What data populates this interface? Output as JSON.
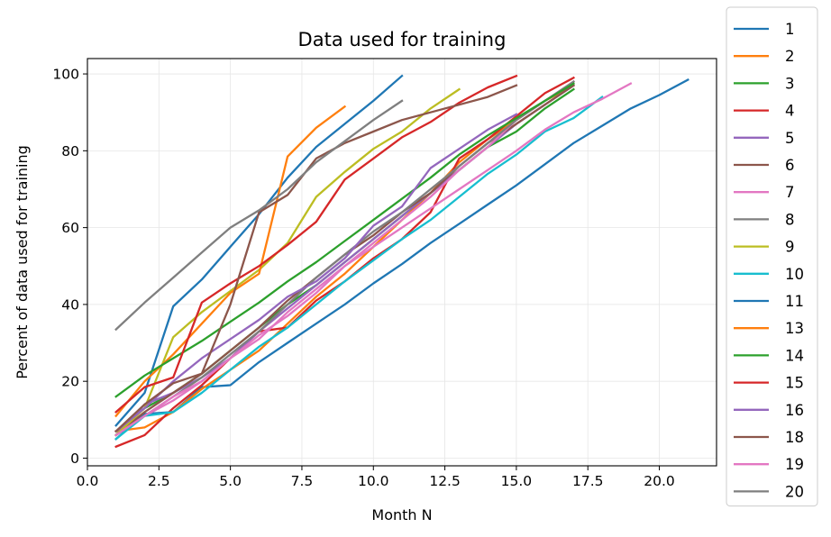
{
  "chart_data": {
    "type": "line",
    "title": "Data used for training",
    "xlabel": "Month N",
    "ylabel": "Percent of data used for training",
    "xlim": [
      0,
      22
    ],
    "ylim": [
      -2,
      104
    ],
    "xticks": [
      0.0,
      2.5,
      5.0,
      7.5,
      10.0,
      12.5,
      15.0,
      17.5,
      20.0
    ],
    "xtick_labels": [
      "0.0",
      "2.5",
      "5.0",
      "7.5",
      "10.0",
      "12.5",
      "15.0",
      "17.5",
      "20.0"
    ],
    "yticks": [
      0,
      20,
      40,
      60,
      80,
      100
    ],
    "ytick_labels": [
      "0",
      "20",
      "40",
      "60",
      "80",
      "100"
    ],
    "grid": true,
    "legend_placement": "outside-right",
    "series": [
      {
        "name": "1",
        "color": "#1f77b4",
        "x": [
          1,
          2,
          3,
          4,
          5,
          6,
          7,
          8,
          9,
          10,
          11,
          12,
          13,
          14,
          15,
          16,
          17,
          18,
          19,
          20,
          21
        ],
        "y": [
          5,
          11.5,
          12,
          18.5,
          19,
          25,
          30,
          35,
          40,
          45.5,
          50.5,
          56,
          61,
          66,
          71,
          76.5,
          82,
          86.5,
          91,
          94.5,
          98.5
        ]
      },
      {
        "name": "2",
        "color": "#ff7f0e",
        "x": [
          1,
          2,
          3,
          4,
          5,
          6,
          7,
          8,
          9,
          10,
          11,
          12,
          13,
          14,
          15,
          16,
          17
        ],
        "y": [
          7,
          8,
          12,
          18,
          23,
          28,
          35,
          42,
          48,
          55,
          62,
          69,
          77,
          83,
          88,
          93,
          97
        ]
      },
      {
        "name": "3",
        "color": "#2ca02c",
        "x": [
          1,
          2,
          3,
          4,
          5,
          6,
          7,
          8,
          9,
          10,
          11,
          12,
          13,
          14,
          15,
          16,
          17
        ],
        "y": [
          7,
          13,
          17,
          22,
          28,
          34,
          40,
          45,
          51,
          57,
          63,
          69,
          75,
          81,
          85,
          91,
          96
        ]
      },
      {
        "name": "4",
        "color": "#d62728",
        "x": [
          1,
          2,
          3,
          4,
          5,
          6,
          7,
          8,
          9,
          10,
          11,
          12,
          13,
          14,
          15,
          16,
          17
        ],
        "y": [
          3,
          6,
          13,
          19,
          26,
          33,
          34,
          41,
          46,
          52,
          57,
          64,
          78,
          83,
          89,
          95,
          99
        ]
      },
      {
        "name": "5",
        "color": "#9467bd",
        "x": [
          1,
          2,
          3,
          4,
          5,
          6,
          7,
          8,
          9,
          10,
          11,
          12,
          13,
          14,
          15,
          16,
          17
        ],
        "y": [
          6,
          14,
          17,
          21,
          26,
          33,
          39,
          45,
          51,
          57,
          63,
          69,
          75,
          81,
          87,
          92,
          97
        ]
      },
      {
        "name": "6",
        "color": "#8c564b",
        "x": [
          1,
          2,
          3,
          4,
          5,
          6,
          7,
          8,
          9,
          10,
          11,
          12,
          13,
          14,
          15,
          16,
          17
        ],
        "y": [
          6,
          12,
          17,
          22,
          28,
          34,
          41,
          47,
          53,
          58,
          64,
          69,
          76,
          82,
          87,
          92,
          97
        ]
      },
      {
        "name": "7",
        "color": "#e377c2",
        "x": [
          1,
          2,
          3,
          4,
          5,
          6,
          7,
          8,
          9,
          10,
          11,
          12,
          13,
          14,
          15,
          16,
          17
        ],
        "y": [
          6,
          11,
          15,
          20,
          26,
          32,
          37,
          43,
          50,
          56,
          62,
          68,
          75,
          81,
          88,
          93,
          98
        ]
      },
      {
        "name": "8",
        "color": "#7f7f7f",
        "x": [
          1,
          2,
          3,
          4,
          5,
          6,
          7,
          8,
          9,
          10,
          11,
          12,
          13,
          14,
          15,
          16,
          17
        ],
        "y": [
          6,
          11,
          16,
          21,
          27,
          33,
          40,
          47,
          53,
          59,
          64,
          70,
          76,
          82,
          88,
          93,
          98
        ]
      },
      {
        "name": "9",
        "color": "#bcbd22",
        "x": [
          1,
          2,
          3,
          4,
          5,
          6,
          7,
          8,
          9,
          10,
          11,
          12,
          13
        ],
        "y": [
          6,
          13,
          31.5,
          38,
          43.5,
          49,
          56,
          68,
          74.5,
          80.5,
          85,
          91,
          96
        ]
      },
      {
        "name": "10",
        "color": "#17becf",
        "x": [
          1,
          2,
          3,
          4,
          5,
          6,
          7,
          8,
          9,
          10,
          11,
          12,
          13,
          14,
          15,
          16,
          17,
          18
        ],
        "y": [
          5,
          11,
          12,
          17,
          23,
          29,
          34,
          40,
          46,
          51.5,
          57,
          62,
          68,
          74,
          79,
          85,
          88.5,
          94
        ]
      },
      {
        "name": "11",
        "color": "#1f77b4",
        "x": [
          1,
          2,
          3,
          4,
          5,
          6,
          7,
          8,
          9,
          10,
          11
        ],
        "y": [
          8.5,
          17,
          39.5,
          46.5,
          55,
          63.5,
          73,
          81,
          87,
          93,
          99.5
        ]
      },
      {
        "name": "13",
        "color": "#ff7f0e",
        "x": [
          1,
          2,
          3,
          4,
          5,
          6,
          7,
          8,
          9
        ],
        "y": [
          11,
          20,
          27,
          35,
          43,
          48,
          78.5,
          86,
          91.5
        ]
      },
      {
        "name": "14",
        "color": "#2ca02c",
        "x": [
          1,
          2,
          3,
          4,
          5,
          6,
          7,
          8,
          9,
          10,
          11,
          12,
          13,
          14,
          15,
          16,
          17
        ],
        "y": [
          16,
          21.5,
          26,
          30.5,
          35.5,
          40.5,
          46,
          51,
          56.5,
          62,
          67.5,
          73,
          79,
          84,
          88.5,
          93,
          97.5
        ]
      },
      {
        "name": "15",
        "color": "#d62728",
        "x": [
          1,
          2,
          3,
          4,
          5,
          6,
          7,
          8,
          9,
          10,
          11,
          12,
          13,
          14,
          15
        ],
        "y": [
          12,
          18.5,
          21,
          40.5,
          45.5,
          50,
          55.5,
          61.5,
          72.5,
          78,
          83.5,
          87.5,
          92.5,
          96.5,
          99.5
        ]
      },
      {
        "name": "16",
        "color": "#9467bd",
        "x": [
          1,
          2,
          3,
          4,
          5,
          6,
          7,
          8,
          9,
          10,
          11,
          12,
          13,
          14,
          15
        ],
        "y": [
          7,
          13,
          20,
          26,
          31,
          36,
          42,
          46,
          52,
          60.5,
          65.5,
          75.5,
          80.5,
          85.5,
          89.5
        ]
      },
      {
        "name": "18",
        "color": "#8c564b",
        "x": [
          1,
          2,
          3,
          4,
          5,
          6,
          7,
          8,
          9,
          10,
          11,
          12,
          13,
          14,
          15
        ],
        "y": [
          7,
          14,
          19.5,
          22,
          40,
          64,
          68.5,
          78,
          82,
          85,
          88,
          90,
          92,
          94,
          97
        ]
      },
      {
        "name": "19",
        "color": "#e377c2",
        "x": [
          1,
          2,
          3,
          4,
          5,
          6,
          7,
          8,
          9,
          10,
          11,
          12,
          13,
          14,
          15,
          16,
          17,
          18,
          19
        ],
        "y": [
          6,
          11,
          16,
          20,
          26,
          31,
          38,
          44,
          50,
          55,
          60,
          65,
          70,
          75,
          80,
          85.5,
          90,
          93.5,
          97.5
        ]
      },
      {
        "name": "20",
        "color": "#7f7f7f",
        "x": [
          1,
          2,
          3,
          4,
          5,
          6,
          7,
          8,
          9,
          10,
          11
        ],
        "y": [
          33.5,
          40.5,
          47,
          53.5,
          60,
          64.5,
          70,
          77,
          82.5,
          88,
          93
        ]
      }
    ]
  }
}
